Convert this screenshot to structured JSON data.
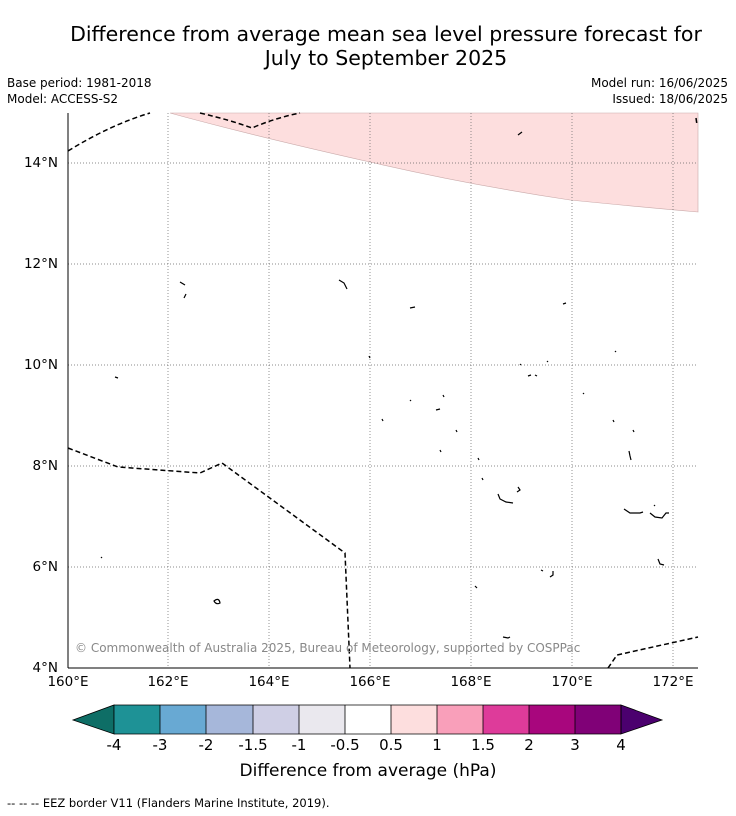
{
  "title_line1": "Difference from average mean sea level pressure forecast for",
  "title_line2": "July to September 2025",
  "base_period": "Base period: 1981-2018",
  "model": "Model: ACCESS-S2",
  "model_run": "Model run: 16/06/2025",
  "issued": "Issued: 18/06/2025",
  "copyright": "© Commonwealth of Australia 2025, Bureau of Meteorology, supported by COSPPac",
  "map": {
    "lat_labels": [
      "14°N",
      "12°N",
      "10°N",
      "8°N",
      "6°N",
      "4°N"
    ],
    "lon_labels": [
      "160°E",
      "162°E",
      "164°E",
      "166°E",
      "168°E",
      "170°E",
      "172°E"
    ],
    "anomaly_region": {
      "range_hpa": "0.5 to 1",
      "color": "#fddede"
    }
  },
  "colorbar": {
    "title": "Difference from average (hPa)",
    "ticks": [
      "-4",
      "-3",
      "-2",
      "-1.5",
      "-1",
      "-0.5",
      "0.5",
      "1",
      "1.5",
      "2",
      "3",
      "4"
    ],
    "colors": [
      "#0e6e66",
      "#1e9296",
      "#68a9d3",
      "#a6b7da",
      "#cfcfe5",
      "#eae8ee",
      "#ffffff",
      "#fddede",
      "#f99fba",
      "#de3b9a",
      "#a8067d",
      "#800177",
      "#4b006e"
    ]
  },
  "legend": "--  --  -- EEZ border V11 (Flanders Marine Institute, 2019)."
}
